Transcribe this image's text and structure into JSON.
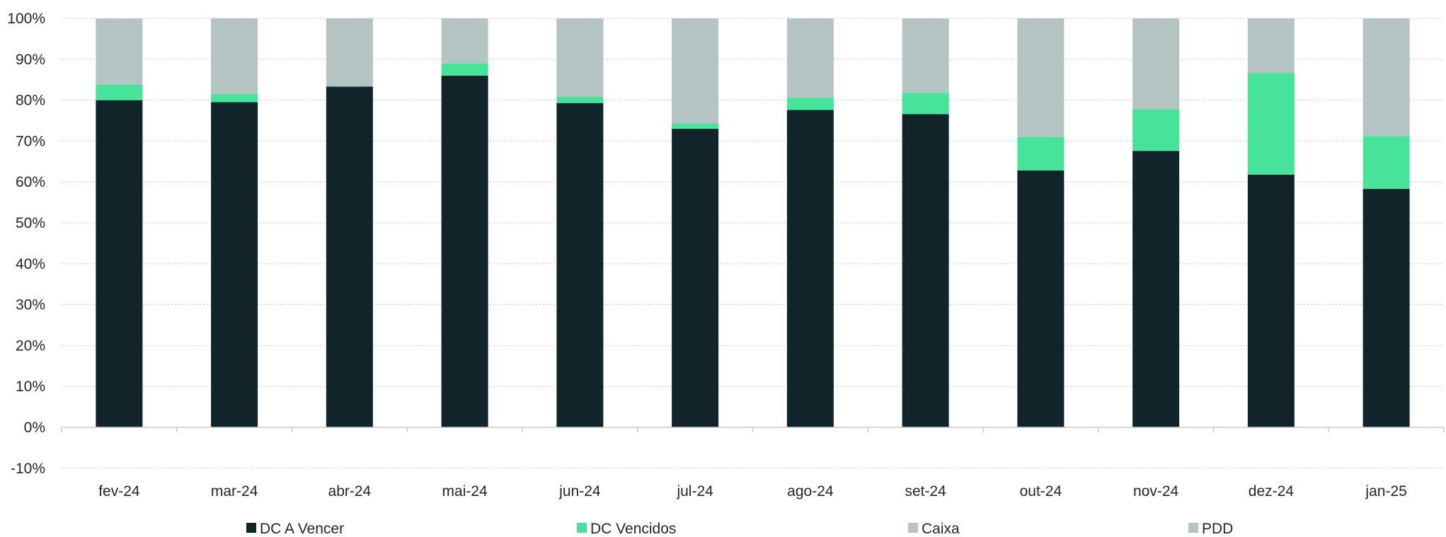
{
  "chart_data": {
    "type": "bar",
    "stacked": true,
    "categories": [
      "fev-24",
      "mar-24",
      "abr-24",
      "mai-24",
      "jun-24",
      "jul-24",
      "ago-24",
      "set-24",
      "out-24",
      "nov-24",
      "dez-24",
      "jan-25"
    ],
    "series": [
      {
        "name": "DC A Vencer",
        "color": "#10242a",
        "values": [
          80,
          79.5,
          83.3,
          86,
          79.3,
          73,
          77.6,
          76.6,
          62.8,
          67.6,
          61.8,
          58.3
        ]
      },
      {
        "name": "DC Vencidos",
        "color": "#47e39b",
        "values": [
          3.8,
          2,
          0.1,
          3,
          1.5,
          1.3,
          3,
          5.2,
          8.2,
          10.2,
          24.8,
          12.9
        ]
      },
      {
        "name": "Caixa",
        "color": "#b4c4c2",
        "values": [
          16,
          18.5,
          16.6,
          11,
          19.2,
          25.7,
          19.4,
          18.2,
          29,
          22.2,
          12.4,
          28.8
        ]
      },
      {
        "name": "PDD",
        "color": "#b4c4c2",
        "values": [
          0.2,
          0,
          0,
          0,
          0,
          0,
          0,
          0,
          0,
          0,
          1,
          0
        ]
      }
    ],
    "ylim": [
      -10,
      100
    ],
    "yticks": [
      -10,
      0,
      10,
      20,
      30,
      40,
      50,
      60,
      70,
      80,
      90,
      100
    ],
    "ytick_labels": [
      "-10%",
      "0%",
      "10%",
      "20%",
      "30%",
      "40%",
      "50%",
      "60%",
      "70%",
      "80%",
      "90%",
      "100%"
    ],
    "grid": true,
    "legend_position": "bottom",
    "title": "",
    "xlabel": "",
    "ylabel": ""
  }
}
